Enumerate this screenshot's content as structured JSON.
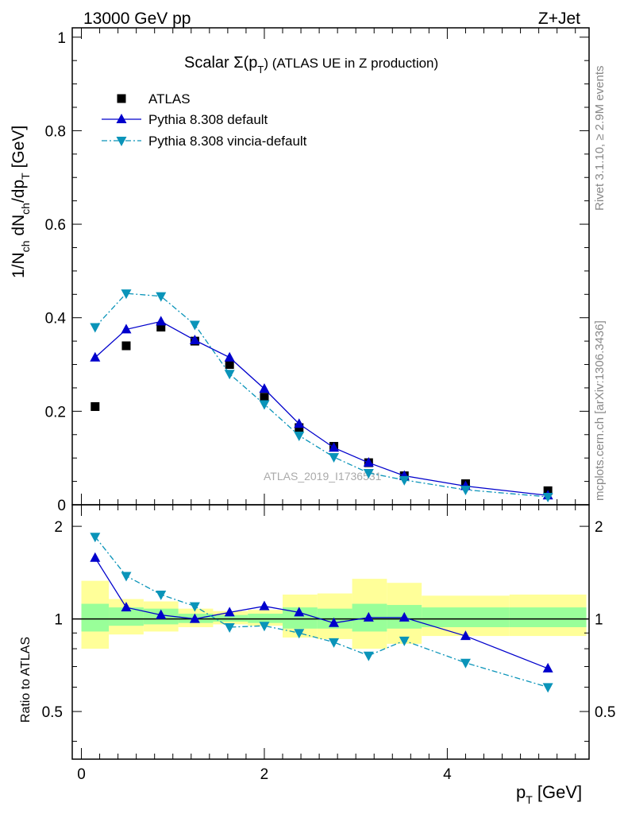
{
  "header": {
    "left": "13000 GeV pp",
    "right": "Z+Jet"
  },
  "side_labels": {
    "rivet": "Rivet 3.1.10, ≥ 2.9M events",
    "mcplots": "mcplots.cern.ch [arXiv:1306.3436]"
  },
  "watermark": "ATLAS_2019_I1736531",
  "chart_data": [
    {
      "type": "line",
      "title": "Scalar Σ(p_T) (ATLAS UE in Z production)",
      "title_main": "Scalar Σ(p",
      "title_sub": "T",
      "title_rest": ") (ATLAS UE in Z production)",
      "ylabel": "1/N_ch dN_ch/dp_T [GeV]",
      "ylabel_parts": {
        "a": "1/N",
        "b": "ch",
        "c": " dN",
        "d": "ch",
        "e": "/dp",
        "f": "T",
        "g": " [GeV]"
      },
      "xlim": [
        -0.1,
        5.55
      ],
      "ylim": [
        0,
        1.02
      ],
      "yticks": [
        "0",
        "0.2",
        "0.4",
        "0.6",
        "0.8",
        "1"
      ],
      "legend_position": "top-left",
      "x": [
        0.15,
        0.49,
        0.87,
        1.24,
        1.62,
        2.0,
        2.38,
        2.76,
        3.14,
        3.53,
        4.2,
        5.1
      ],
      "series": [
        {
          "name": "ATLAS",
          "color": "#000000",
          "marker": "square",
          "values": [
            0.21,
            0.34,
            0.38,
            0.35,
            0.3,
            0.23,
            0.165,
            0.125,
            0.09,
            0.062,
            0.045,
            0.03
          ]
        },
        {
          "name": "Pythia 8.308 default",
          "color": "#0000cc",
          "marker": "triangle-up",
          "values": [
            0.315,
            0.375,
            0.392,
            0.352,
            0.315,
            0.248,
            0.173,
            0.122,
            0.09,
            0.062,
            0.04,
            0.02
          ]
        },
        {
          "name": "Pythia 8.308 vincia-default",
          "color": "#0a94b9",
          "marker": "triangle-down",
          "values": [
            0.38,
            0.452,
            0.446,
            0.385,
            0.28,
            0.215,
            0.148,
            0.102,
            0.068,
            0.053,
            0.032,
            0.017
          ]
        }
      ]
    },
    {
      "type": "line",
      "ylabel": "Ratio to ATLAS",
      "xlabel": "p_T [GeV]",
      "xlabel_main": "p",
      "xlabel_sub": "T",
      "xlabel_rest": " [GeV]",
      "xticks": [
        "0",
        "2",
        "4"
      ],
      "yticks": [
        "0.5",
        "1",
        "2"
      ],
      "ylim": [
        0.35,
        2.35
      ],
      "band_edges": [
        0.0,
        0.3,
        0.68,
        1.06,
        1.44,
        1.82,
        2.2,
        2.58,
        2.96,
        3.34,
        3.72,
        4.68,
        5.52
      ],
      "band_green": [
        [
          0.91,
          1.12
        ],
        [
          0.95,
          1.09
        ],
        [
          0.96,
          1.08
        ],
        [
          0.97,
          1.04
        ],
        [
          0.98,
          1.03
        ],
        [
          0.97,
          1.04
        ],
        [
          0.93,
          1.09
        ],
        [
          0.93,
          1.08
        ],
        [
          0.91,
          1.12
        ],
        [
          0.93,
          1.11
        ],
        [
          0.94,
          1.09
        ],
        [
          0.94,
          1.09
        ]
      ],
      "band_yellow": [
        [
          0.8,
          1.33
        ],
        [
          0.89,
          1.16
        ],
        [
          0.91,
          1.14
        ],
        [
          0.94,
          1.08
        ],
        [
          0.96,
          1.06
        ],
        [
          0.95,
          1.07
        ],
        [
          0.87,
          1.2
        ],
        [
          0.86,
          1.21
        ],
        [
          0.8,
          1.35
        ],
        [
          0.83,
          1.31
        ],
        [
          0.88,
          1.19
        ],
        [
          0.88,
          1.2
        ]
      ],
      "series": [
        {
          "name": "Pythia 8.308 default",
          "color": "#0000cc",
          "marker": "triangle-up",
          "values": [
            1.58,
            1.09,
            1.03,
            1.0,
            1.05,
            1.1,
            1.05,
            0.97,
            1.01,
            1.01,
            0.88,
            0.69
          ]
        },
        {
          "name": "Pythia 8.308 vincia-default",
          "color": "#0a94b9",
          "marker": "triangle-down",
          "values": [
            1.85,
            1.38,
            1.2,
            1.1,
            0.94,
            0.95,
            0.9,
            0.84,
            0.76,
            0.85,
            0.72,
            0.6
          ]
        }
      ]
    }
  ]
}
